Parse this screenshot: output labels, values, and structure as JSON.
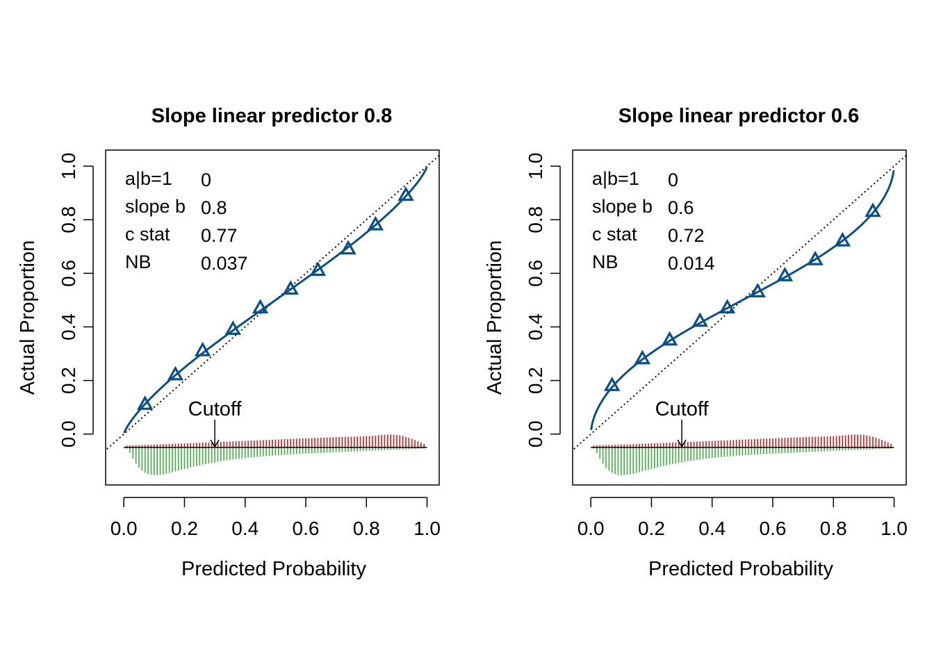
{
  "chart_data": [
    {
      "type": "line",
      "title": "Slope linear predictor 0.8",
      "xlabel": "Predicted Probability",
      "ylabel": "Actual Proportion",
      "xlim": [
        -0.06,
        1.04
      ],
      "ylim": [
        -0.19,
        1.06
      ],
      "x_ticks": [
        "0.0",
        "0.2",
        "0.4",
        "0.6",
        "0.8",
        "1.0"
      ],
      "y_ticks": [
        "0.0",
        "0.2",
        "0.4",
        "0.6",
        "0.8",
        "1.0"
      ],
      "stats": [
        {
          "label": "a|b=1",
          "value": "0"
        },
        {
          "label": "slope b",
          "value": "0.8"
        },
        {
          "label": "c stat",
          "value": "0.77"
        },
        {
          "label": "NB",
          "value": "0.037"
        }
      ],
      "cutoff": {
        "label": "Cutoff",
        "x": 0.3
      },
      "calibration_slope": 0.8,
      "series": [
        {
          "values": {
            "x": [
              0.07,
              0.17,
              0.26,
              0.36,
              0.45,
              0.55,
              0.64,
              0.74,
              0.83,
              0.93
            ],
            "y": [
              0.11,
              0.22,
              0.31,
              0.39,
              0.47,
              0.54,
              0.61,
              0.69,
              0.78,
              0.89
            ]
          }
        }
      ],
      "reference_line": "diagonal dotted y = x",
      "histogram": {
        "events_above_axis_color": "#cc1a1a",
        "non_events_below_axis_color": "#3fae3f",
        "peak_events_x": 0.88,
        "peak_non_events_x": 0.1
      },
      "colors": {
        "curve": "#0b4f8a",
        "frame": "#000000"
      }
    },
    {
      "type": "line",
      "title": "Slope linear predictor 0.6",
      "xlabel": "Predicted Probability",
      "ylabel": "Actual Proportion",
      "xlim": [
        -0.06,
        1.04
      ],
      "ylim": [
        -0.19,
        1.06
      ],
      "x_ticks": [
        "0.0",
        "0.2",
        "0.4",
        "0.6",
        "0.8",
        "1.0"
      ],
      "y_ticks": [
        "0.0",
        "0.2",
        "0.4",
        "0.6",
        "0.8",
        "1.0"
      ],
      "stats": [
        {
          "label": "a|b=1",
          "value": "0"
        },
        {
          "label": "slope b",
          "value": "0.6"
        },
        {
          "label": "c stat",
          "value": "0.72"
        },
        {
          "label": "NB",
          "value": "0.014"
        }
      ],
      "cutoff": {
        "label": "Cutoff",
        "x": 0.3
      },
      "calibration_slope": 0.6,
      "series": [
        {
          "values": {
            "x": [
              0.07,
              0.17,
              0.26,
              0.36,
              0.45,
              0.55,
              0.64,
              0.74,
              0.83,
              0.93
            ],
            "y": [
              0.18,
              0.28,
              0.35,
              0.42,
              0.47,
              0.53,
              0.59,
              0.65,
              0.72,
              0.83
            ]
          }
        }
      ],
      "reference_line": "diagonal dotted y = x",
      "histogram": {
        "events_above_axis_color": "#cc1a1a",
        "non_events_below_axis_color": "#3fae3f",
        "peak_events_x": 0.88,
        "peak_non_events_x": 0.1
      },
      "colors": {
        "curve": "#0b4f8a",
        "frame": "#000000"
      }
    }
  ]
}
